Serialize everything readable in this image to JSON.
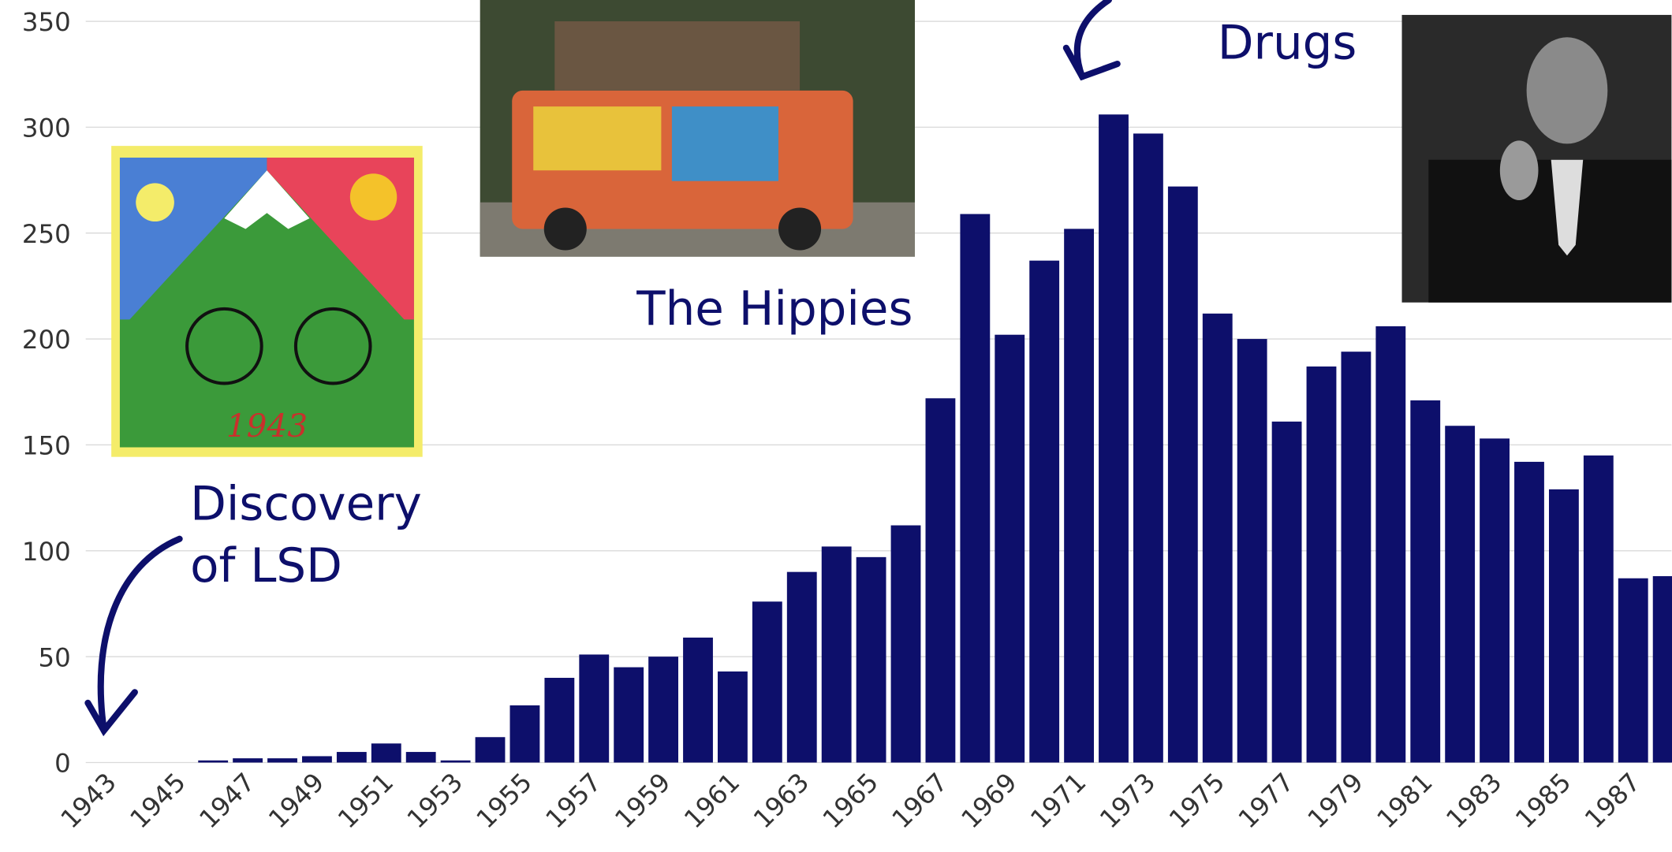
{
  "chart_data": {
    "type": "bar",
    "categories": [
      "1943",
      null,
      "1945",
      null,
      "1947",
      null,
      "1949",
      null,
      "1951",
      null,
      "1953",
      null,
      "1955",
      null,
      "1957",
      null,
      "1959",
      null,
      "1961",
      null,
      "1963",
      null,
      "1965",
      null,
      "1967",
      null,
      "1969",
      null,
      "1971",
      null,
      "1973",
      null,
      "1975",
      null,
      "1977",
      null,
      "1979",
      null,
      "1981",
      null,
      "1983",
      null,
      "1985",
      null,
      "1987",
      null
    ],
    "values": [
      0,
      0,
      0,
      1,
      2,
      2,
      3,
      5,
      9,
      5,
      1,
      12,
      27,
      40,
      51,
      45,
      50,
      59,
      43,
      76,
      90,
      102,
      97,
      112,
      172,
      259,
      202,
      237,
      252,
      306,
      297,
      272,
      212,
      200,
      161,
      187,
      194,
      206,
      171,
      159,
      153,
      142,
      129,
      145,
      87,
      88
    ],
    "color": "#0d0f6b",
    "ylim": [
      0,
      350
    ],
    "yticks": [
      0,
      50,
      100,
      150,
      200,
      250,
      300,
      350
    ],
    "grid": true,
    "annotations": [
      {
        "lines": [
          "Discovery",
          "of LSD"
        ]
      },
      {
        "lines": [
          "The Hippies"
        ]
      },
      {
        "lines": [
          "Drugs"
        ]
      }
    ]
  }
}
